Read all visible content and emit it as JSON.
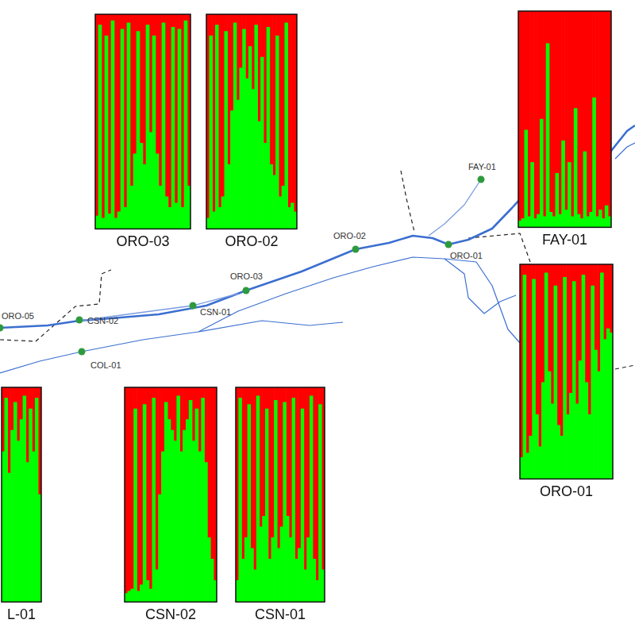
{
  "chart_data": [
    {
      "type": "bar",
      "stacked": true,
      "title": "ORO-03",
      "tick_labels": false,
      "ylim": [
        0,
        1
      ],
      "categories": [
        null,
        null,
        null,
        null,
        null,
        null,
        null,
        null,
        null,
        null,
        null,
        null,
        null,
        null,
        null,
        null,
        null,
        null,
        null,
        null,
        null,
        null,
        null,
        null,
        null,
        null,
        null,
        null,
        null,
        null
      ],
      "series": [
        {
          "color": "#00ff00",
          "values": [
            0.06,
            0.95,
            0.05,
            0.9,
            0.07,
            0.97,
            0.05,
            0.08,
            0.93,
            0.1,
            0.96,
            0.2,
            0.35,
            0.92,
            0.4,
            0.3,
            0.95,
            0.45,
            0.9,
            0.35,
            0.2,
            0.96,
            0.15,
            0.1,
            0.94,
            0.12,
            0.93,
            0.1,
            0.97,
            0.2
          ]
        },
        {
          "color": "#ff0000",
          "values": [
            0.94,
            0.05,
            0.95,
            0.1,
            0.93,
            0.03,
            0.95,
            0.92,
            0.07,
            0.9,
            0.04,
            0.8,
            0.65,
            0.08,
            0.6,
            0.7,
            0.05,
            0.55,
            0.1,
            0.65,
            0.8,
            0.04,
            0.85,
            0.9,
            0.06,
            0.88,
            0.07,
            0.9,
            0.03,
            0.8
          ]
        }
      ]
    },
    {
      "type": "bar",
      "stacked": true,
      "title": "ORO-02",
      "tick_labels": false,
      "ylim": [
        0,
        1
      ],
      "categories": [
        null,
        null,
        null,
        null,
        null,
        null,
        null,
        null,
        null,
        null,
        null,
        null,
        null,
        null,
        null,
        null,
        null,
        null,
        null,
        null,
        null,
        null,
        null,
        null,
        null,
        null,
        null,
        null,
        null,
        null
      ],
      "series": [
        {
          "color": "#00ff00",
          "values": [
            0.05,
            0.9,
            0.08,
            0.95,
            0.1,
            0.15,
            0.92,
            0.3,
            0.55,
            0.96,
            0.6,
            0.75,
            0.93,
            0.7,
            0.85,
            0.65,
            0.95,
            0.5,
            0.8,
            0.4,
            0.94,
            0.3,
            0.25,
            0.9,
            0.15,
            0.2,
            0.96,
            0.1,
            0.12,
            0.08
          ]
        },
        {
          "color": "#ff0000",
          "values": [
            0.95,
            0.1,
            0.92,
            0.05,
            0.9,
            0.85,
            0.08,
            0.7,
            0.45,
            0.04,
            0.4,
            0.25,
            0.07,
            0.3,
            0.15,
            0.35,
            0.05,
            0.5,
            0.2,
            0.6,
            0.06,
            0.7,
            0.75,
            0.1,
            0.85,
            0.8,
            0.04,
            0.9,
            0.88,
            0.92
          ]
        }
      ]
    },
    {
      "type": "bar",
      "stacked": true,
      "title": "FAY-01",
      "tick_labels": false,
      "ylim": [
        0,
        1
      ],
      "categories": [
        null,
        null,
        null,
        null,
        null,
        null,
        null,
        null,
        null,
        null,
        null,
        null,
        null,
        null,
        null,
        null,
        null,
        null,
        null,
        null,
        null,
        null,
        null,
        null,
        null,
        null,
        null,
        null,
        null,
        null
      ],
      "series": [
        {
          "color": "#00ff00",
          "values": [
            0.03,
            0.04,
            0.45,
            0.05,
            0.3,
            0.04,
            0.06,
            0.5,
            0.05,
            0.85,
            0.07,
            0.05,
            0.25,
            0.06,
            0.4,
            0.08,
            0.3,
            0.05,
            0.55,
            0.06,
            0.04,
            0.35,
            0.05,
            0.07,
            0.6,
            0.05,
            0.08,
            0.04,
            0.1,
            0.05
          ]
        },
        {
          "color": "#ff0000",
          "values": [
            0.97,
            0.96,
            0.55,
            0.95,
            0.7,
            0.96,
            0.94,
            0.5,
            0.95,
            0.15,
            0.93,
            0.95,
            0.75,
            0.94,
            0.6,
            0.92,
            0.7,
            0.95,
            0.45,
            0.94,
            0.96,
            0.65,
            0.95,
            0.93,
            0.4,
            0.95,
            0.92,
            0.96,
            0.9,
            0.95
          ]
        }
      ]
    },
    {
      "type": "bar",
      "stacked": true,
      "title": "ORO-01",
      "tick_labels": false,
      "ylim": [
        0,
        1
      ],
      "categories": [
        null,
        null,
        null,
        null,
        null,
        null,
        null,
        null,
        null,
        null,
        null,
        null,
        null,
        null,
        null,
        null,
        null,
        null,
        null,
        null,
        null,
        null,
        null,
        null,
        null,
        null,
        null,
        null,
        null,
        null
      ],
      "series": [
        {
          "color": "#00ff00",
          "values": [
            0.1,
            0.95,
            0.12,
            0.2,
            0.93,
            0.3,
            0.15,
            0.45,
            0.96,
            0.5,
            0.35,
            0.9,
            0.25,
            0.2,
            0.94,
            0.3,
            0.4,
            0.92,
            0.35,
            0.55,
            0.95,
            0.45,
            0.3,
            0.9,
            0.6,
            0.5,
            0.96,
            0.65,
            0.7,
            0.68
          ]
        },
        {
          "color": "#ff0000",
          "values": [
            0.9,
            0.05,
            0.88,
            0.8,
            0.07,
            0.7,
            0.85,
            0.55,
            0.04,
            0.5,
            0.65,
            0.1,
            0.75,
            0.8,
            0.06,
            0.7,
            0.6,
            0.08,
            0.65,
            0.45,
            0.05,
            0.55,
            0.7,
            0.1,
            0.4,
            0.5,
            0.04,
            0.35,
            0.3,
            0.32
          ]
        }
      ]
    },
    {
      "type": "bar",
      "stacked": true,
      "title": "L-01",
      "tick_labels": false,
      "ylim": [
        0,
        1
      ],
      "categories": [
        null,
        null,
        null,
        null,
        null,
        null,
        null,
        null,
        null,
        null,
        null,
        null,
        null
      ],
      "series": [
        {
          "color": "#00ff00",
          "values": [
            0.7,
            0.95,
            0.6,
            0.8,
            0.93,
            0.75,
            0.85,
            0.96,
            0.65,
            0.9,
            0.7,
            0.95,
            0.5
          ]
        },
        {
          "color": "#ff0000",
          "values": [
            0.3,
            0.05,
            0.4,
            0.2,
            0.07,
            0.25,
            0.15,
            0.04,
            0.35,
            0.1,
            0.3,
            0.05,
            0.5
          ]
        }
      ]
    },
    {
      "type": "bar",
      "stacked": true,
      "title": "CSN-02",
      "tick_labels": false,
      "ylim": [
        0,
        1
      ],
      "categories": [
        null,
        null,
        null,
        null,
        null,
        null,
        null,
        null,
        null,
        null,
        null,
        null,
        null,
        null,
        null,
        null,
        null,
        null,
        null,
        null,
        null,
        null,
        null,
        null,
        null,
        null,
        null,
        null,
        null,
        null
      ],
      "series": [
        {
          "color": "#00ff00",
          "values": [
            0.04,
            0.05,
            0.06,
            0.9,
            0.05,
            0.08,
            0.92,
            0.1,
            0.06,
            0.95,
            0.15,
            0.5,
            0.7,
            0.93,
            0.85,
            0.8,
            0.75,
            0.96,
            0.7,
            0.8,
            0.85,
            0.94,
            0.75,
            0.9,
            0.7,
            0.95,
            0.65,
            0.3,
            0.2,
            0.1
          ]
        },
        {
          "color": "#ff0000",
          "values": [
            0.96,
            0.95,
            0.94,
            0.1,
            0.95,
            0.92,
            0.08,
            0.9,
            0.94,
            0.05,
            0.85,
            0.5,
            0.3,
            0.07,
            0.15,
            0.2,
            0.25,
            0.04,
            0.3,
            0.2,
            0.15,
            0.06,
            0.25,
            0.1,
            0.3,
            0.05,
            0.35,
            0.7,
            0.8,
            0.9
          ]
        }
      ]
    },
    {
      "type": "bar",
      "stacked": true,
      "title": "CSN-01",
      "tick_labels": false,
      "ylim": [
        0,
        1
      ],
      "categories": [
        null,
        null,
        null,
        null,
        null,
        null,
        null,
        null,
        null,
        null,
        null,
        null,
        null,
        null,
        null,
        null,
        null,
        null,
        null,
        null,
        null,
        null,
        null,
        null,
        null,
        null,
        null,
        null,
        null,
        null
      ],
      "series": [
        {
          "color": "#00ff00",
          "values": [
            0.1,
            0.95,
            0.2,
            0.3,
            0.92,
            0.25,
            0.15,
            0.96,
            0.35,
            0.4,
            0.9,
            0.2,
            0.3,
            0.94,
            0.25,
            0.35,
            0.93,
            0.4,
            0.3,
            0.95,
            0.2,
            0.25,
            0.9,
            0.15,
            0.3,
            0.96,
            0.2,
            0.1,
            0.92,
            0.15
          ]
        },
        {
          "color": "#ff0000",
          "values": [
            0.9,
            0.05,
            0.8,
            0.7,
            0.08,
            0.75,
            0.85,
            0.04,
            0.65,
            0.6,
            0.1,
            0.8,
            0.7,
            0.06,
            0.75,
            0.65,
            0.07,
            0.6,
            0.7,
            0.05,
            0.8,
            0.75,
            0.1,
            0.85,
            0.7,
            0.04,
            0.8,
            0.9,
            0.08,
            0.85
          ]
        }
      ]
    }
  ],
  "map": {
    "sites": [
      {
        "label": "ORO-05"
      },
      {
        "label": "CSN-02"
      },
      {
        "label": "CSN-01"
      },
      {
        "label": "COL-01"
      },
      {
        "label": "ORO-03"
      },
      {
        "label": "ORO-02"
      },
      {
        "label": "ORO-01"
      },
      {
        "label": "FAY-01"
      }
    ]
  }
}
